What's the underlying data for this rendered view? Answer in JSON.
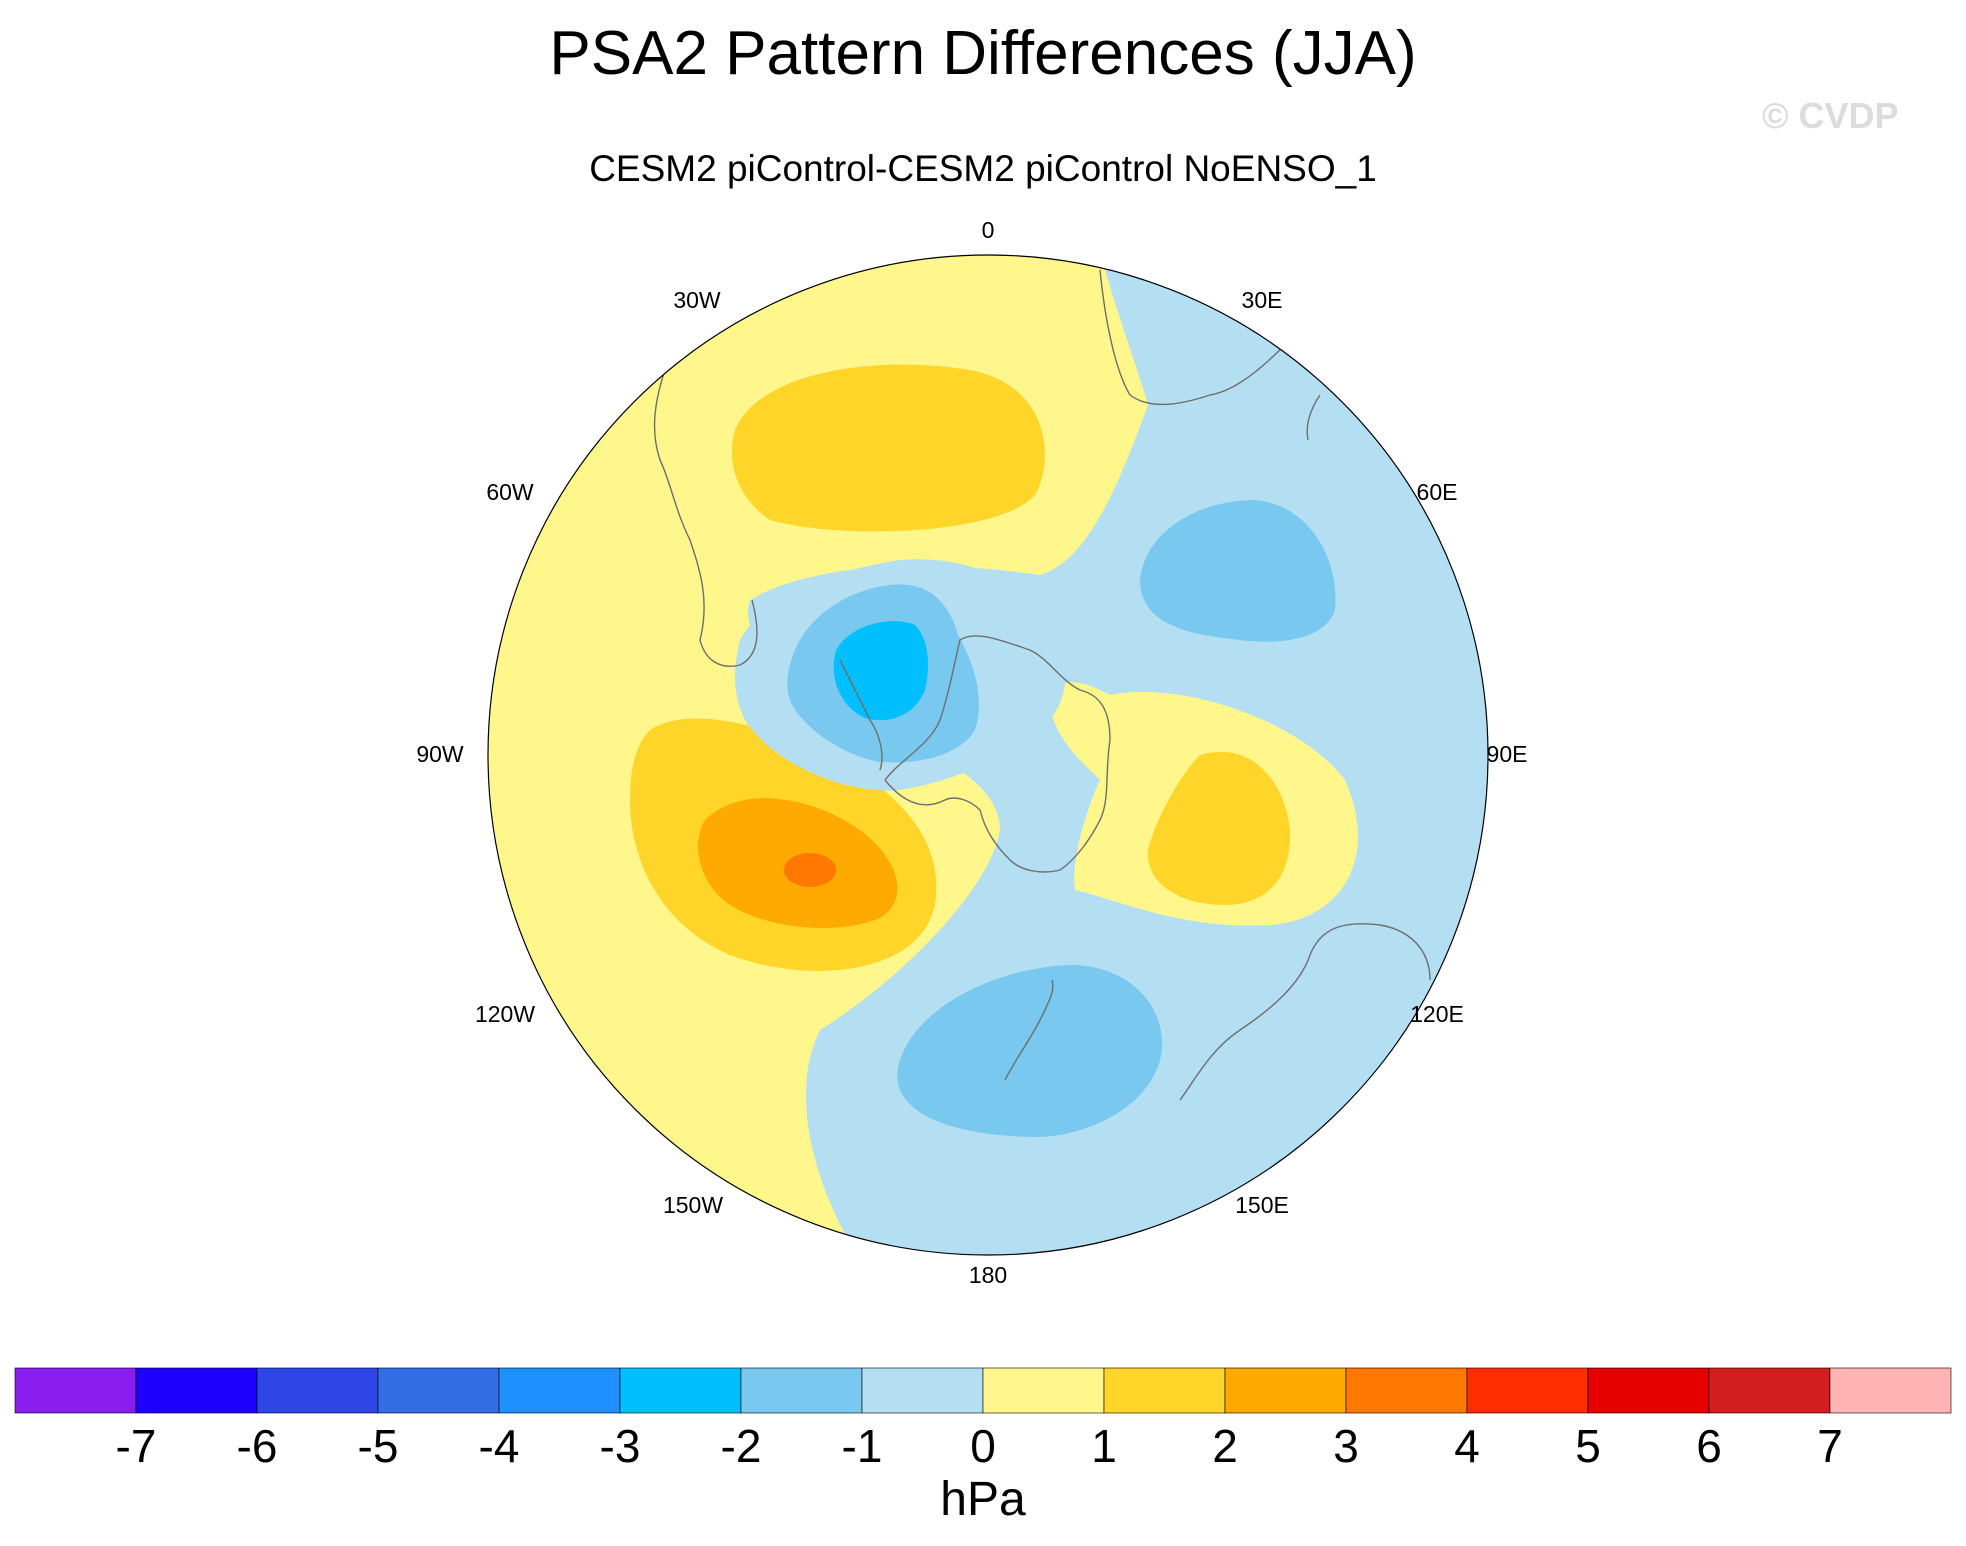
{
  "title": "PSA2 Pattern Differences (JJA)",
  "subtitle": "CESM2 piControl-CESM2 piControl NoENSO_1",
  "watermark": "© CVDP",
  "units": "hPa",
  "longitude_labels": [
    {
      "name": "lon-0",
      "text": "0"
    },
    {
      "name": "lon-30e",
      "text": "30E"
    },
    {
      "name": "lon-60e",
      "text": "60E"
    },
    {
      "name": "lon-90e",
      "text": "90E"
    },
    {
      "name": "lon-120e",
      "text": "120E"
    },
    {
      "name": "lon-150e",
      "text": "150E"
    },
    {
      "name": "lon-180",
      "text": "180"
    },
    {
      "name": "lon-150w",
      "text": "150W"
    },
    {
      "name": "lon-120w",
      "text": "120W"
    },
    {
      "name": "lon-90w",
      "text": "90W"
    },
    {
      "name": "lon-60w",
      "text": "60W"
    },
    {
      "name": "lon-30w",
      "text": "30W"
    }
  ],
  "colorbar": {
    "levels": [
      "-7",
      "-6",
      "-5",
      "-4",
      "-3",
      "-2",
      "-1",
      "0",
      "1",
      "2",
      "3",
      "4",
      "5",
      "6",
      "7"
    ],
    "colors": [
      "#8a1ef0",
      "#1e00ff",
      "#2e46e8",
      "#336ee6",
      "#1e90ff",
      "#00bfff",
      "#78c8f0",
      "#b4dff2",
      "#fff78c",
      "#ffd52a",
      "#ffaa00",
      "#ff7800",
      "#ff2d00",
      "#e60000",
      "#d21e1e",
      "#ffb4b4"
    ]
  },
  "colors": {
    "neg1": "#b4dff2",
    "neg2": "#78c8f0",
    "neg3": "#00bfff",
    "pos1": "#fff78c",
    "pos2": "#ffd52a",
    "pos3": "#ffaa00",
    "pos4": "#ff7800",
    "coast": "#6e6e6e"
  }
}
